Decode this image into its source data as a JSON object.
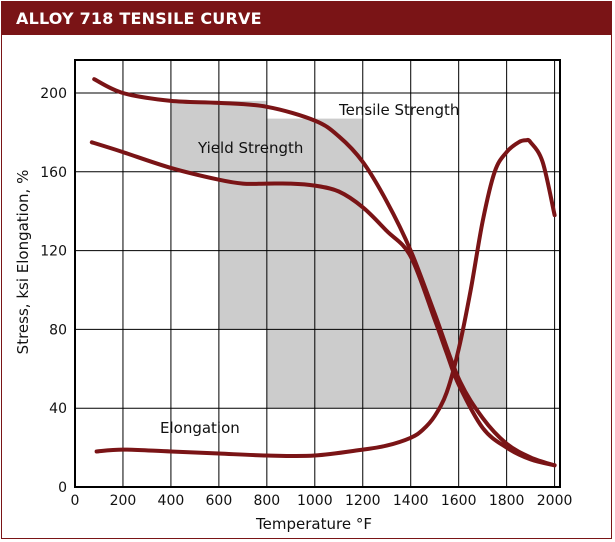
{
  "header": {
    "title": "ALLOY 718 TENSILE CURVE"
  },
  "chart_data": {
    "type": "line",
    "title": "ALLOY 718 TENSILE CURVE",
    "xlabel": "Temperature °F",
    "ylabel": "Stress, ksi  Elongation, %",
    "xlim": [
      0,
      2000
    ],
    "ylim": [
      0,
      210
    ],
    "xticks": [
      0,
      200,
      400,
      600,
      800,
      1000,
      1200,
      1400,
      1600,
      1800,
      2000
    ],
    "yticks": [
      0,
      40,
      80,
      120,
      160,
      200
    ],
    "grid": true,
    "colors": {
      "curve": "#7a1416",
      "band": "#cccccc",
      "title_bar": "#7a1416"
    },
    "shaded_band": [
      {
        "x": [
          400,
          600
        ],
        "y": [
          160,
          196
        ]
      },
      {
        "x": [
          600,
          800
        ],
        "y": [
          80,
          196
        ]
      },
      {
        "x": [
          800,
          1200
        ],
        "y": [
          40,
          187
        ]
      },
      {
        "x": [
          1200,
          1600
        ],
        "y": [
          40,
          120
        ]
      },
      {
        "x": [
          1600,
          1800
        ],
        "y": [
          40,
          80
        ]
      }
    ],
    "series": [
      {
        "name": "Tensile Strength",
        "x": [
          80,
          200,
          400,
          600,
          800,
          1000,
          1100,
          1200,
          1300,
          1400,
          1500,
          1600,
          1700,
          1800,
          1900,
          2000
        ],
        "y": [
          207,
          200,
          196,
          195,
          193,
          186,
          178,
          165,
          145,
          120,
          88,
          55,
          35,
          22,
          15,
          11
        ]
      },
      {
        "name": "Yield Strength",
        "x": [
          70,
          200,
          400,
          600,
          700,
          800,
          900,
          1000,
          1100,
          1200,
          1300,
          1400,
          1500,
          1550,
          1600,
          1700,
          1800,
          1900,
          2000
        ],
        "y": [
          175,
          170,
          162,
          156,
          154,
          154,
          154,
          153,
          150,
          142,
          130,
          117,
          85,
          68,
          52,
          30,
          20,
          14,
          11
        ]
      },
      {
        "name": "Elongation",
        "x": [
          90,
          200,
          400,
          600,
          800,
          1000,
          1200,
          1300,
          1400,
          1450,
          1500,
          1550,
          1600,
          1650,
          1700,
          1750,
          1800,
          1850,
          1880,
          1900,
          1950,
          2000
        ],
        "y": [
          18,
          19,
          18,
          17,
          16,
          16,
          19,
          21,
          25,
          29,
          36,
          48,
          70,
          100,
          135,
          160,
          170,
          175,
          176,
          175,
          165,
          138
        ]
      }
    ],
    "annotations": [
      "Tensile Strength",
      "Yield Strength",
      "Elongation"
    ]
  }
}
